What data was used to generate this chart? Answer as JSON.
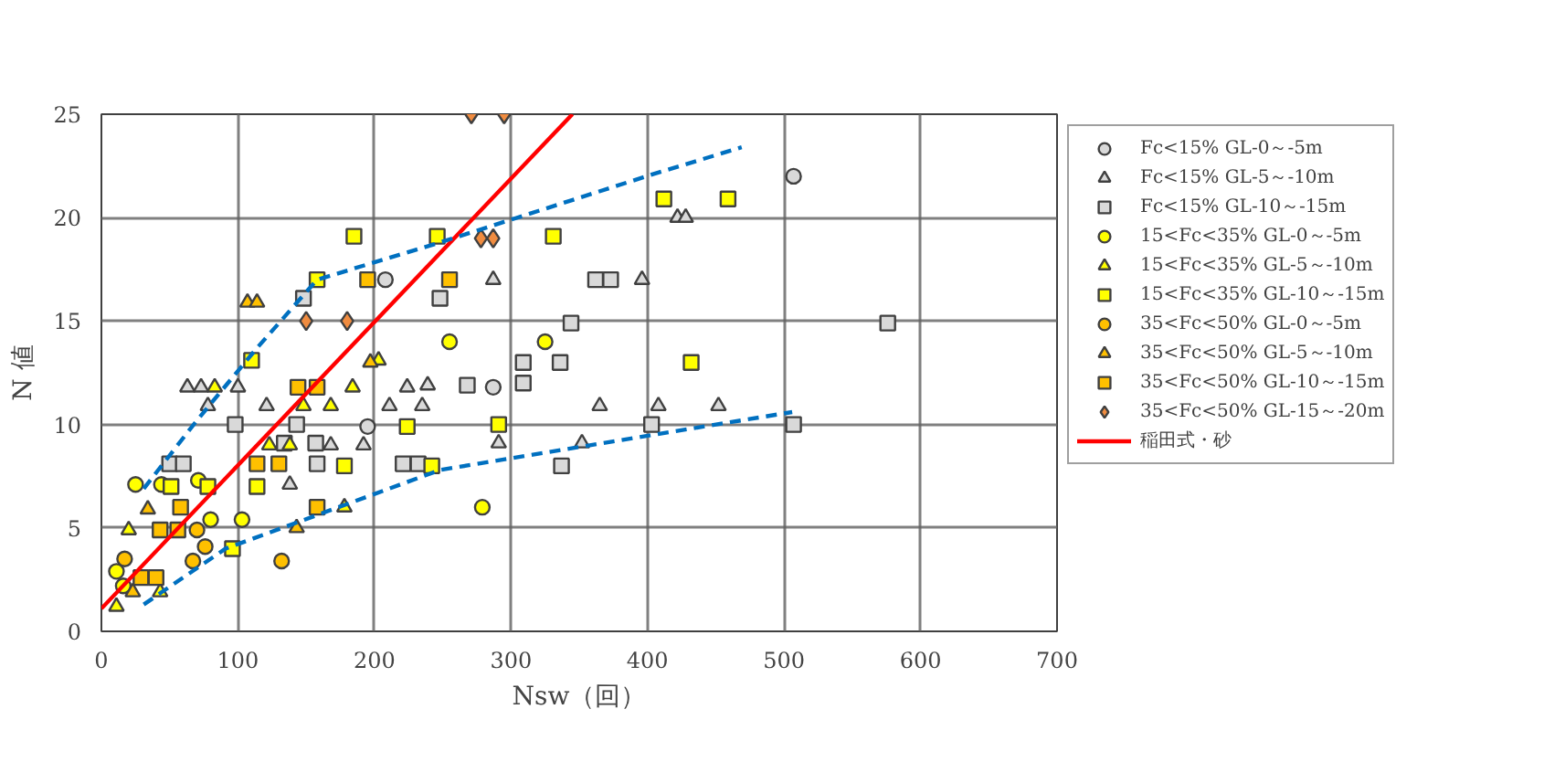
{
  "chart_data": {
    "type": "scatter",
    "xlabel": "Nsw（回）",
    "ylabel": "N 値",
    "xlim": [
      0,
      700
    ],
    "ylim": [
      0,
      25
    ],
    "xticks": [
      0,
      100,
      200,
      300,
      400,
      500,
      600,
      700
    ],
    "yticks": [
      0,
      5,
      10,
      15,
      20,
      25
    ],
    "grid": true,
    "legend": "right",
    "series": [
      {
        "name": "Fc<15% GL-0～-5m",
        "marker": "circle",
        "color": "#d9d9d9",
        "x": [
          507,
          287,
          195,
          208
        ],
        "values": [
          22,
          11.8,
          9.9,
          17
        ]
      },
      {
        "name": "Fc<15% GL-5～-10m",
        "marker": "triangle",
        "color": "#d9d9d9",
        "x": [
          63,
          73,
          100,
          224,
          121,
          211,
          235,
          78,
          192,
          168,
          138,
          287,
          396,
          422,
          428,
          239,
          365,
          408,
          452,
          291,
          352
        ],
        "values": [
          11.8,
          11.8,
          11.8,
          11.8,
          10.9,
          10.9,
          10.9,
          10.9,
          9.0,
          9.0,
          7.1,
          17,
          17,
          20,
          20,
          11.9,
          10.9,
          10.9,
          10.9,
          9.1,
          9.1
        ]
      },
      {
        "name": "Fc<15% GL-10～-15m",
        "marker": "square",
        "color": "#d9d9d9",
        "x": [
          98,
          143,
          50,
          60,
          134,
          157,
          158,
          221,
          232,
          248,
          362,
          373,
          344,
          576,
          309,
          336,
          268,
          309,
          403,
          507,
          337,
          148
        ],
        "values": [
          10,
          10,
          8.1,
          8.1,
          9.1,
          9.1,
          8.1,
          8.1,
          8.1,
          16.1,
          17,
          17,
          14.9,
          14.9,
          13,
          13,
          11.9,
          12,
          10,
          10,
          8,
          16.1
        ]
      },
      {
        "name": "15<Fc<35% GL-0～-5m",
        "marker": "circle",
        "color": "#ffff00",
        "x": [
          25,
          44,
          80,
          103,
          255,
          325,
          279,
          71,
          11,
          16
        ],
        "values": [
          7.1,
          7.1,
          5.4,
          5.4,
          14,
          14,
          6,
          7.3,
          2.9,
          2.2
        ]
      },
      {
        "name": "15<Fc<35% GL-5～-10m",
        "marker": "triangle",
        "color": "#ffff00",
        "x": [
          83,
          184,
          148,
          168,
          123,
          138,
          178,
          20,
          11,
          43,
          203
        ],
        "values": [
          11.8,
          11.8,
          10.9,
          10.9,
          9,
          9,
          6,
          4.9,
          1.2,
          1.9,
          13.1
        ]
      },
      {
        "name": "15<Fc<35% GL-10～-15m",
        "marker": "square",
        "color": "#ffff00",
        "x": [
          185,
          158,
          110,
          246,
          331,
          412,
          459,
          432,
          291,
          242,
          224,
          178,
          114,
          51,
          78,
          96
        ],
        "values": [
          19.1,
          17,
          13.1,
          19.1,
          19.1,
          20.9,
          20.9,
          13,
          10,
          8,
          9.9,
          8,
          7,
          7,
          7,
          4
        ]
      },
      {
        "name": "35<Fc<50% GL-0～-5m",
        "marker": "circle",
        "color": "#ffc000",
        "x": [
          17,
          67,
          76,
          132,
          70
        ],
        "values": [
          3.5,
          3.4,
          4.1,
          3.4,
          4.9
        ]
      },
      {
        "name": "35<Fc<50% GL-5～-10m",
        "marker": "triangle",
        "color": "#ffc000",
        "x": [
          107,
          114,
          197,
          34,
          143,
          23
        ],
        "values": [
          15.9,
          15.9,
          13,
          5.9,
          5,
          1.9
        ]
      },
      {
        "name": "35<Fc<50% GL-10～-15m",
        "marker": "square",
        "color": "#ffc000",
        "x": [
          195,
          255,
          144,
          158,
          114,
          130,
          158,
          58,
          43,
          56,
          29,
          40
        ],
        "values": [
          17,
          17,
          11.8,
          11.8,
          8.1,
          8.1,
          6,
          6,
          4.9,
          4.9,
          2.6,
          2.6
        ]
      },
      {
        "name": "35<Fc<50% GL-15～-20m",
        "marker": "diamond",
        "color": "#f08c40",
        "x": [
          271,
          295,
          278,
          287,
          150,
          180
        ],
        "values": [
          25,
          25,
          19,
          19,
          15,
          15
        ]
      },
      {
        "name": "稲田式・砂",
        "type": "line",
        "line_style": "solid",
        "color": "#ff0000",
        "x": [
          0,
          345
        ],
        "values": [
          1.1,
          25
        ]
      },
      {
        "type": "line",
        "line_style": "dashed",
        "color": "#0070c0",
        "x": [
          31,
          70,
          114,
          158,
          248,
          404,
          469
        ],
        "values": [
          6.9,
          10.2,
          13.7,
          17,
          18.8,
          22.1,
          23.4
        ]
      },
      {
        "type": "line",
        "line_style": "dashed",
        "color": "#0070c0",
        "x": [
          31,
          91,
          248,
          404,
          506
        ],
        "values": [
          1.3,
          4.0,
          7.8,
          9.5,
          10.6
        ]
      }
    ]
  }
}
